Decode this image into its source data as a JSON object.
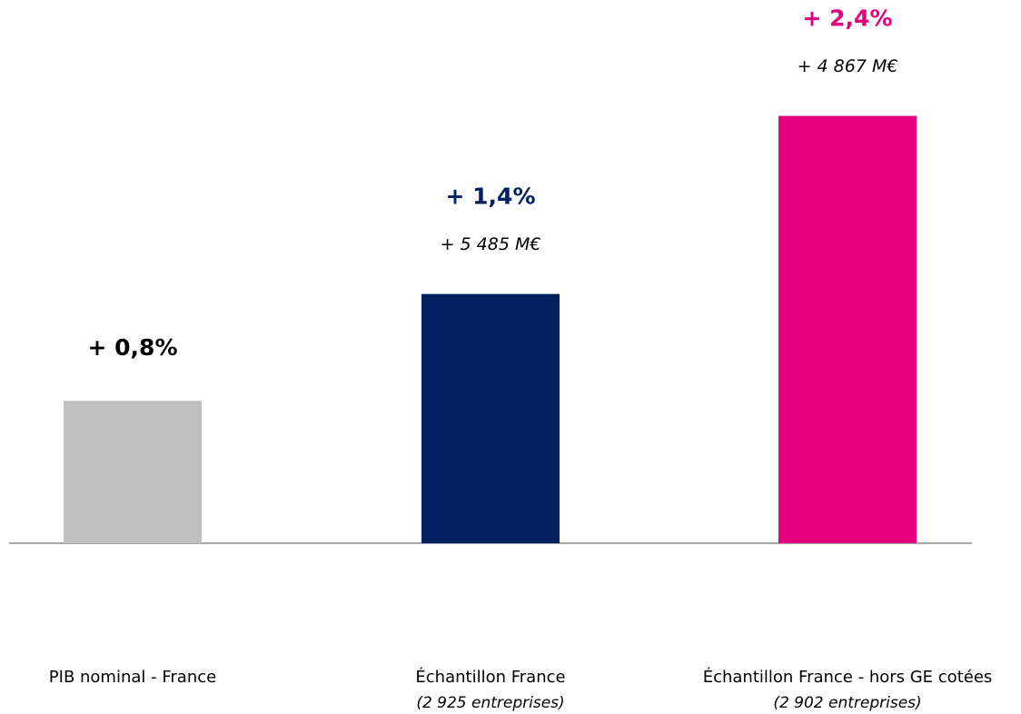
{
  "chart_data": {
    "type": "bar",
    "categories": [
      "PIB nominal - France",
      "Échantillon France",
      "Échantillon France - hors GE cotées"
    ],
    "category_notes": [
      null,
      "(2 925 entreprises)",
      "(2 902 entreprises)"
    ],
    "values": [
      0.8,
      1.4,
      2.4
    ],
    "value_labels": [
      "+ 0,8%",
      "+ 1,4%",
      "+ 2,4%"
    ],
    "amount_labels": [
      null,
      "+ 5 485 M€",
      "+ 4 867 M€"
    ],
    "colors": [
      "#bfbfbf",
      "#002060",
      "#e6007e"
    ],
    "label_colors": [
      "#000000",
      "#002060",
      "#e6007e"
    ]
  }
}
